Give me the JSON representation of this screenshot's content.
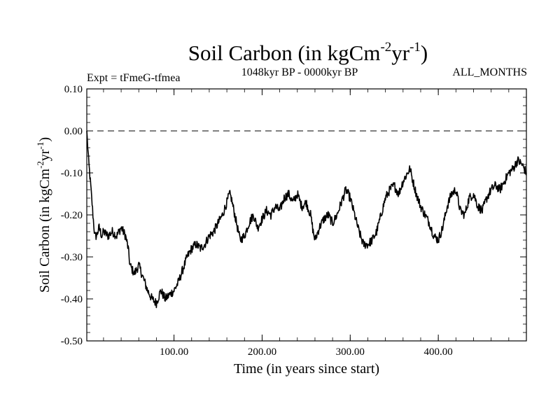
{
  "chart_data": {
    "type": "line",
    "title": "Soil Carbon (in kgCm",
    "title_exp1": "-2",
    "title_mid": "yr",
    "title_exp2": "-1",
    "title_end": ")",
    "left_subtitle": "Expt = tFmeG-tfmea",
    "center_subtitle": "1048kyr BP - 0000kyr BP",
    "right_subtitle": "ALL_MONTHS",
    "xlabel": "Time (in years since start)",
    "ylabel": "Soil Carbon (in kgCm",
    "ylabel_exp1": "-2",
    "ylabel_mid": "yr",
    "ylabel_exp2": "-1",
    "ylabel_end": ")",
    "xlim": [
      1,
      500
    ],
    "ylim": [
      -0.5,
      0.1
    ],
    "xticks": [
      100,
      200,
      300,
      400
    ],
    "xtick_labels": [
      "100.00",
      "200.00",
      "300.00",
      "400.00"
    ],
    "yticks": [
      0.1,
      0.0,
      -0.1,
      -0.2,
      -0.3,
      -0.4,
      -0.5
    ],
    "ytick_labels": [
      "0.10",
      "0.00",
      "-0.10",
      "-0.20",
      "-0.30",
      "-0.40",
      "-0.50"
    ],
    "reference_line": {
      "y": 0.0,
      "style": "dashed"
    },
    "series": [
      {
        "name": "Soil Carbon",
        "x": [
          1,
          3,
          5,
          8,
          10,
          12,
          15,
          18,
          20,
          25,
          30,
          35,
          40,
          45,
          48,
          50,
          55,
          60,
          65,
          70,
          75,
          80,
          85,
          90,
          95,
          100,
          105,
          110,
          115,
          120,
          125,
          130,
          135,
          140,
          145,
          150,
          155,
          160,
          163,
          165,
          170,
          175,
          180,
          185,
          190,
          195,
          200,
          205,
          210,
          215,
          220,
          225,
          230,
          235,
          240,
          245,
          250,
          255,
          258,
          260,
          265,
          270,
          275,
          280,
          285,
          290,
          295,
          300,
          305,
          310,
          315,
          320,
          325,
          330,
          335,
          340,
          345,
          350,
          355,
          360,
          365,
          368,
          370,
          375,
          380,
          385,
          390,
          395,
          400,
          405,
          410,
          415,
          420,
          425,
          430,
          435,
          440,
          445,
          450,
          455,
          460,
          465,
          470,
          475,
          480,
          485,
          490,
          495,
          500
        ],
        "y": [
          0.0,
          -0.07,
          -0.12,
          -0.2,
          -0.25,
          -0.25,
          -0.23,
          -0.25,
          -0.24,
          -0.25,
          -0.24,
          -0.25,
          -0.23,
          -0.25,
          -0.28,
          -0.32,
          -0.34,
          -0.32,
          -0.35,
          -0.38,
          -0.4,
          -0.41,
          -0.38,
          -0.4,
          -0.39,
          -0.38,
          -0.36,
          -0.33,
          -0.3,
          -0.28,
          -0.27,
          -0.28,
          -0.27,
          -0.25,
          -0.24,
          -0.22,
          -0.2,
          -0.17,
          -0.15,
          -0.16,
          -0.21,
          -0.26,
          -0.25,
          -0.22,
          -0.2,
          -0.23,
          -0.21,
          -0.19,
          -0.2,
          -0.18,
          -0.19,
          -0.16,
          -0.15,
          -0.17,
          -0.15,
          -0.18,
          -0.17,
          -0.2,
          -0.24,
          -0.26,
          -0.23,
          -0.21,
          -0.2,
          -0.22,
          -0.2,
          -0.17,
          -0.14,
          -0.16,
          -0.2,
          -0.24,
          -0.27,
          -0.27,
          -0.26,
          -0.24,
          -0.2,
          -0.16,
          -0.14,
          -0.13,
          -0.15,
          -0.12,
          -0.1,
          -0.09,
          -0.11,
          -0.15,
          -0.18,
          -0.2,
          -0.22,
          -0.25,
          -0.26,
          -0.23,
          -0.18,
          -0.15,
          -0.14,
          -0.19,
          -0.2,
          -0.16,
          -0.15,
          -0.18,
          -0.19,
          -0.16,
          -0.14,
          -0.13,
          -0.14,
          -0.12,
          -0.1,
          -0.09,
          -0.07,
          -0.08,
          -0.1
        ]
      }
    ]
  }
}
